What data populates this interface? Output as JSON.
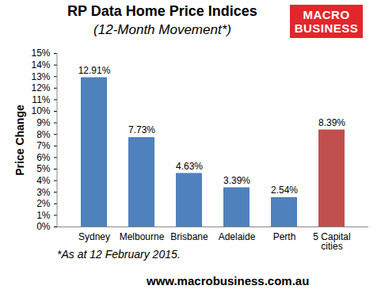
{
  "chart_data": {
    "type": "bar",
    "title": "RP Data Home Price Indices",
    "subtitle": "(12-Month Movement*)",
    "y_label": "Price Change",
    "categories": [
      "Sydney",
      "Melbourne",
      "Brisbane",
      "Adelaide",
      "Perth",
      "5 Capital cities"
    ],
    "values": [
      12.91,
      7.73,
      4.63,
      3.39,
      2.54,
      8.39
    ],
    "value_labels": [
      "12.91%",
      "7.73%",
      "4.63%",
      "3.39%",
      "2.54%",
      "8.39%"
    ],
    "colors": [
      "#4f81bd",
      "#4f81bd",
      "#4f81bd",
      "#4f81bd",
      "#4f81bd",
      "#c0504d"
    ],
    "ylim": [
      0,
      15
    ],
    "yticks": [
      {
        "value": 0,
        "label": "0%"
      },
      {
        "value": 1,
        "label": "1%"
      },
      {
        "value": 2,
        "label": "2%"
      },
      {
        "value": 3,
        "label": "3%"
      },
      {
        "value": 4,
        "label": "4%"
      },
      {
        "value": 5,
        "label": "5%"
      },
      {
        "value": 6,
        "label": "6%"
      },
      {
        "value": 7,
        "label": "7%"
      },
      {
        "value": 8,
        "label": "8%"
      },
      {
        "value": 9,
        "label": "9%"
      },
      {
        "value": 10,
        "label": "10%"
      },
      {
        "value": 11,
        "label": "11%"
      },
      {
        "value": 12,
        "label": "12%"
      },
      {
        "value": 13,
        "label": "13%"
      },
      {
        "value": 14,
        "label": "14%"
      },
      {
        "value": 15,
        "label": "15%"
      }
    ],
    "grid": false,
    "data_labels": true,
    "footnote": "*As at 12 February 2015.",
    "source": "www.macrobusiness.com.au",
    "logo": [
      "MACRO",
      "BUSINESS"
    ]
  }
}
